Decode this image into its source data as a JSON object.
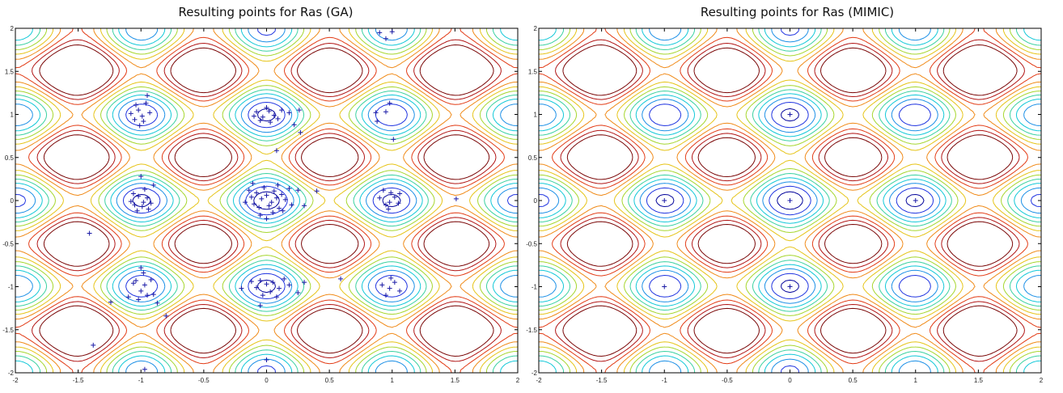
{
  "chart_data": [
    {
      "type": "contour",
      "title": "Resulting points for Ras (GA)",
      "xlim": [
        -2,
        2
      ],
      "ylim": [
        -2,
        2
      ],
      "x_ticks": [
        -2,
        -1.5,
        -1,
        -0.5,
        0,
        0.5,
        1,
        1.5,
        2
      ],
      "y_ticks": [
        -2,
        -1.5,
        -1,
        -0.5,
        0,
        0.5,
        1,
        1.5,
        2
      ],
      "x_tick_labels": [
        "-2",
        "-1.5",
        "-1",
        "-0.5",
        "0",
        "0.5",
        "1",
        "1.5",
        "2"
      ],
      "y_tick_labels": [
        "-2",
        "-1.5",
        "-1",
        "-0.5",
        "0",
        "0.5",
        "1",
        "1.5",
        "2"
      ],
      "marker": "+",
      "marker_color": "#1a1aa6",
      "points": [
        [
          -1.04,
          1.11
        ],
        [
          -0.96,
          1.13
        ],
        [
          -1.02,
          1.05
        ],
        [
          -0.99,
          0.98
        ],
        [
          -0.93,
          1.02
        ],
        [
          -1.08,
          1.01
        ],
        [
          -1.01,
          0.87
        ],
        [
          -0.98,
          0.92
        ],
        [
          -1.05,
          0.94
        ],
        [
          -0.95,
          1.22
        ],
        [
          -0.08,
          1.03
        ],
        [
          -0.03,
          0.97
        ],
        [
          0.02,
          1.04
        ],
        [
          0.06,
          0.99
        ],
        [
          0.0,
          1.08
        ],
        [
          -0.05,
          0.93
        ],
        [
          0.09,
          0.95
        ],
        [
          -0.1,
          0.98
        ],
        [
          0.03,
          0.91
        ],
        [
          0.12,
          1.05
        ],
        [
          0.18,
          1.02
        ],
        [
          0.26,
          1.05
        ],
        [
          0.22,
          0.88
        ],
        [
          0.27,
          0.79
        ],
        [
          0.08,
          0.58
        ],
        [
          0.87,
          1.02
        ],
        [
          0.98,
          1.13
        ],
        [
          0.95,
          1.03
        ],
        [
          1.01,
          0.71
        ],
        [
          0.88,
          0.92
        ],
        [
          0.9,
          1.95
        ],
        [
          1.0,
          1.96
        ],
        [
          0.95,
          1.88
        ],
        [
          -1.02,
          0.05
        ],
        [
          -0.98,
          -0.02
        ],
        [
          -0.95,
          0.03
        ],
        [
          -1.05,
          -0.05
        ],
        [
          -0.92,
          -0.03
        ],
        [
          -0.99,
          -0.07
        ],
        [
          -1.06,
          0.08
        ],
        [
          -0.9,
          0.18
        ],
        [
          -0.97,
          0.13
        ],
        [
          -1.08,
          -0.01
        ],
        [
          -0.94,
          -0.1
        ],
        [
          -1.0,
          0.28
        ],
        [
          -1.03,
          -0.12
        ],
        [
          -0.12,
          0.04
        ],
        [
          -0.08,
          0.09
        ],
        [
          -0.04,
          0.02
        ],
        [
          0.0,
          0.06
        ],
        [
          0.04,
          -0.02
        ],
        [
          0.08,
          0.03
        ],
        [
          0.12,
          0.07
        ],
        [
          -0.1,
          -0.04
        ],
        [
          -0.06,
          -0.08
        ],
        [
          0.02,
          -0.06
        ],
        [
          0.06,
          0.11
        ],
        [
          0.1,
          -0.09
        ],
        [
          -0.14,
          0.12
        ],
        [
          0.15,
          0.01
        ],
        [
          0.18,
          0.14
        ],
        [
          -0.02,
          0.15
        ],
        [
          0.05,
          -0.14
        ],
        [
          -0.17,
          -0.02
        ],
        [
          0.2,
          -0.05
        ],
        [
          0.25,
          0.12
        ],
        [
          0.13,
          -0.12
        ],
        [
          -0.05,
          -0.17
        ],
        [
          0.09,
          0.18
        ],
        [
          -0.11,
          0.2
        ],
        [
          0.3,
          -0.06
        ],
        [
          0.4,
          0.11
        ],
        [
          0.0,
          -0.21
        ],
        [
          0.9,
          0.03
        ],
        [
          0.98,
          -0.02
        ],
        [
          1.02,
          0.04
        ],
        [
          0.95,
          -0.05
        ],
        [
          1.05,
          -0.03
        ],
        [
          0.99,
          0.09
        ],
        [
          0.93,
          0.12
        ],
        [
          1.06,
          0.08
        ],
        [
          0.97,
          -0.1
        ],
        [
          1.51,
          0.02
        ],
        [
          -1.41,
          -0.38
        ],
        [
          -1.04,
          -0.93
        ],
        [
          -0.97,
          -0.98
        ],
        [
          -0.92,
          -0.92
        ],
        [
          -1.06,
          -0.96
        ],
        [
          -1.0,
          -1.05
        ],
        [
          -0.95,
          -1.1
        ],
        [
          -1.02,
          -1.15
        ],
        [
          -0.98,
          -0.84
        ],
        [
          -1.1,
          -1.12
        ],
        [
          -0.9,
          -1.09
        ],
        [
          -1.0,
          -0.78
        ],
        [
          -0.05,
          -0.93
        ],
        [
          0.0,
          -0.97
        ],
        [
          0.05,
          -0.95
        ],
        [
          -0.08,
          -1.01
        ],
        [
          0.1,
          -1.02
        ],
        [
          0.03,
          -1.06
        ],
        [
          -0.03,
          -1.1
        ],
        [
          0.14,
          -0.91
        ],
        [
          -0.12,
          -0.94
        ],
        [
          0.18,
          -0.98
        ],
        [
          0.08,
          -1.12
        ],
        [
          -0.05,
          -1.22
        ],
        [
          0.25,
          -1.07
        ],
        [
          0.3,
          -0.95
        ],
        [
          0.0,
          -1.85
        ],
        [
          -0.2,
          -1.02
        ],
        [
          0.92,
          -0.98
        ],
        [
          0.98,
          -1.02
        ],
        [
          1.02,
          -0.95
        ],
        [
          0.95,
          -1.1
        ],
        [
          1.06,
          -1.05
        ],
        [
          0.99,
          -0.9
        ],
        [
          0.59,
          -0.91
        ],
        [
          -1.24,
          -1.18
        ],
        [
          -0.8,
          -1.34
        ],
        [
          -0.87,
          -1.19
        ],
        [
          -0.97,
          -1.96
        ],
        [
          -1.38,
          -1.68
        ]
      ]
    },
    {
      "type": "contour",
      "title": "Resulting points for Ras (MIMIC)",
      "xlim": [
        -2,
        2
      ],
      "ylim": [
        -2,
        2
      ],
      "x_ticks": [
        -2,
        -1.5,
        -1,
        -0.5,
        0,
        0.5,
        1,
        1.5,
        2
      ],
      "y_ticks": [
        -2,
        -1.5,
        -1,
        -0.5,
        0,
        0.5,
        1,
        1.5,
        2
      ],
      "x_tick_labels": [
        "-2",
        "-1.5",
        "-1",
        "-0.5",
        "0",
        "0.5",
        "1",
        "1.5",
        "2"
      ],
      "y_tick_labels": [
        "-2",
        "-1.5",
        "-1",
        "-0.5",
        "0",
        "0.5",
        "1",
        "1.5",
        "2"
      ],
      "marker": "+",
      "marker_color": "#1a1aa6",
      "points": [
        [
          -1,
          0
        ],
        [
          0,
          0
        ],
        [
          1,
          0
        ],
        [
          0,
          1
        ],
        [
          0,
          -1
        ],
        [
          -1,
          -1
        ]
      ]
    }
  ]
}
